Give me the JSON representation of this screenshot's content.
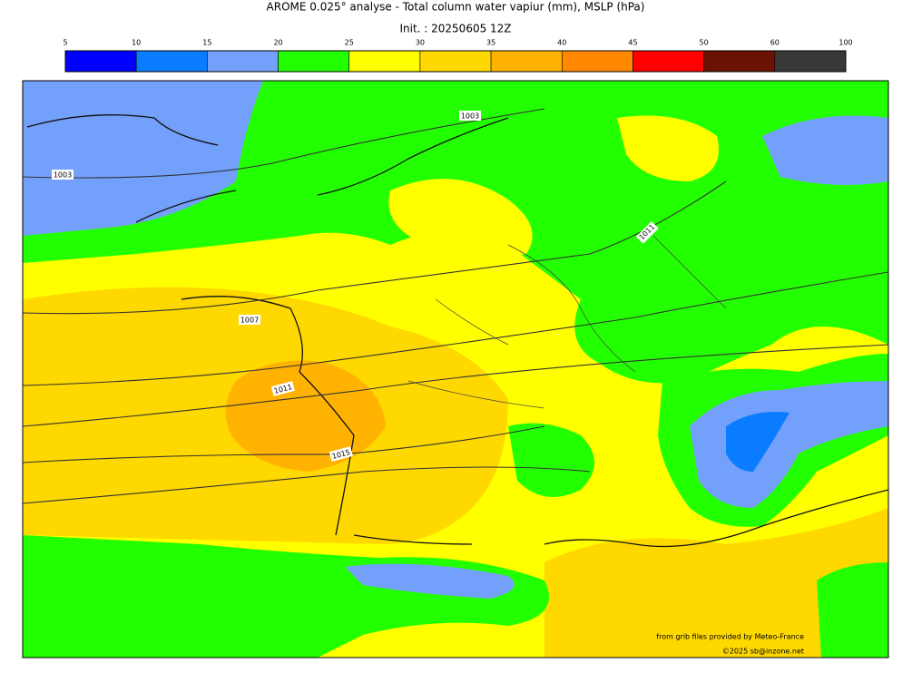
{
  "title": "AROME 0.025° analyse - Total column water vapiur (mm), MSLP (hPa)",
  "subtitle": "Init. : 20250605 12Z",
  "colorbar": {
    "ticks": [
      5,
      10,
      15,
      20,
      25,
      30,
      35,
      40,
      45,
      50,
      60,
      100
    ],
    "colors": [
      "#0000ff",
      "#0a7cff",
      "#73a0fa",
      "#22ff00",
      "#ffff00",
      "#ffd800",
      "#ffb300",
      "#ff8800",
      "#ff0000",
      "#6b1204",
      "#383838"
    ]
  },
  "isobar_labels": [
    "1003",
    "1003",
    "1011",
    "1007",
    "1011",
    "1015"
  ],
  "credits": [
    "from grib files provided by Meteo-France",
    "©2025 sb@inzone.net"
  ]
}
